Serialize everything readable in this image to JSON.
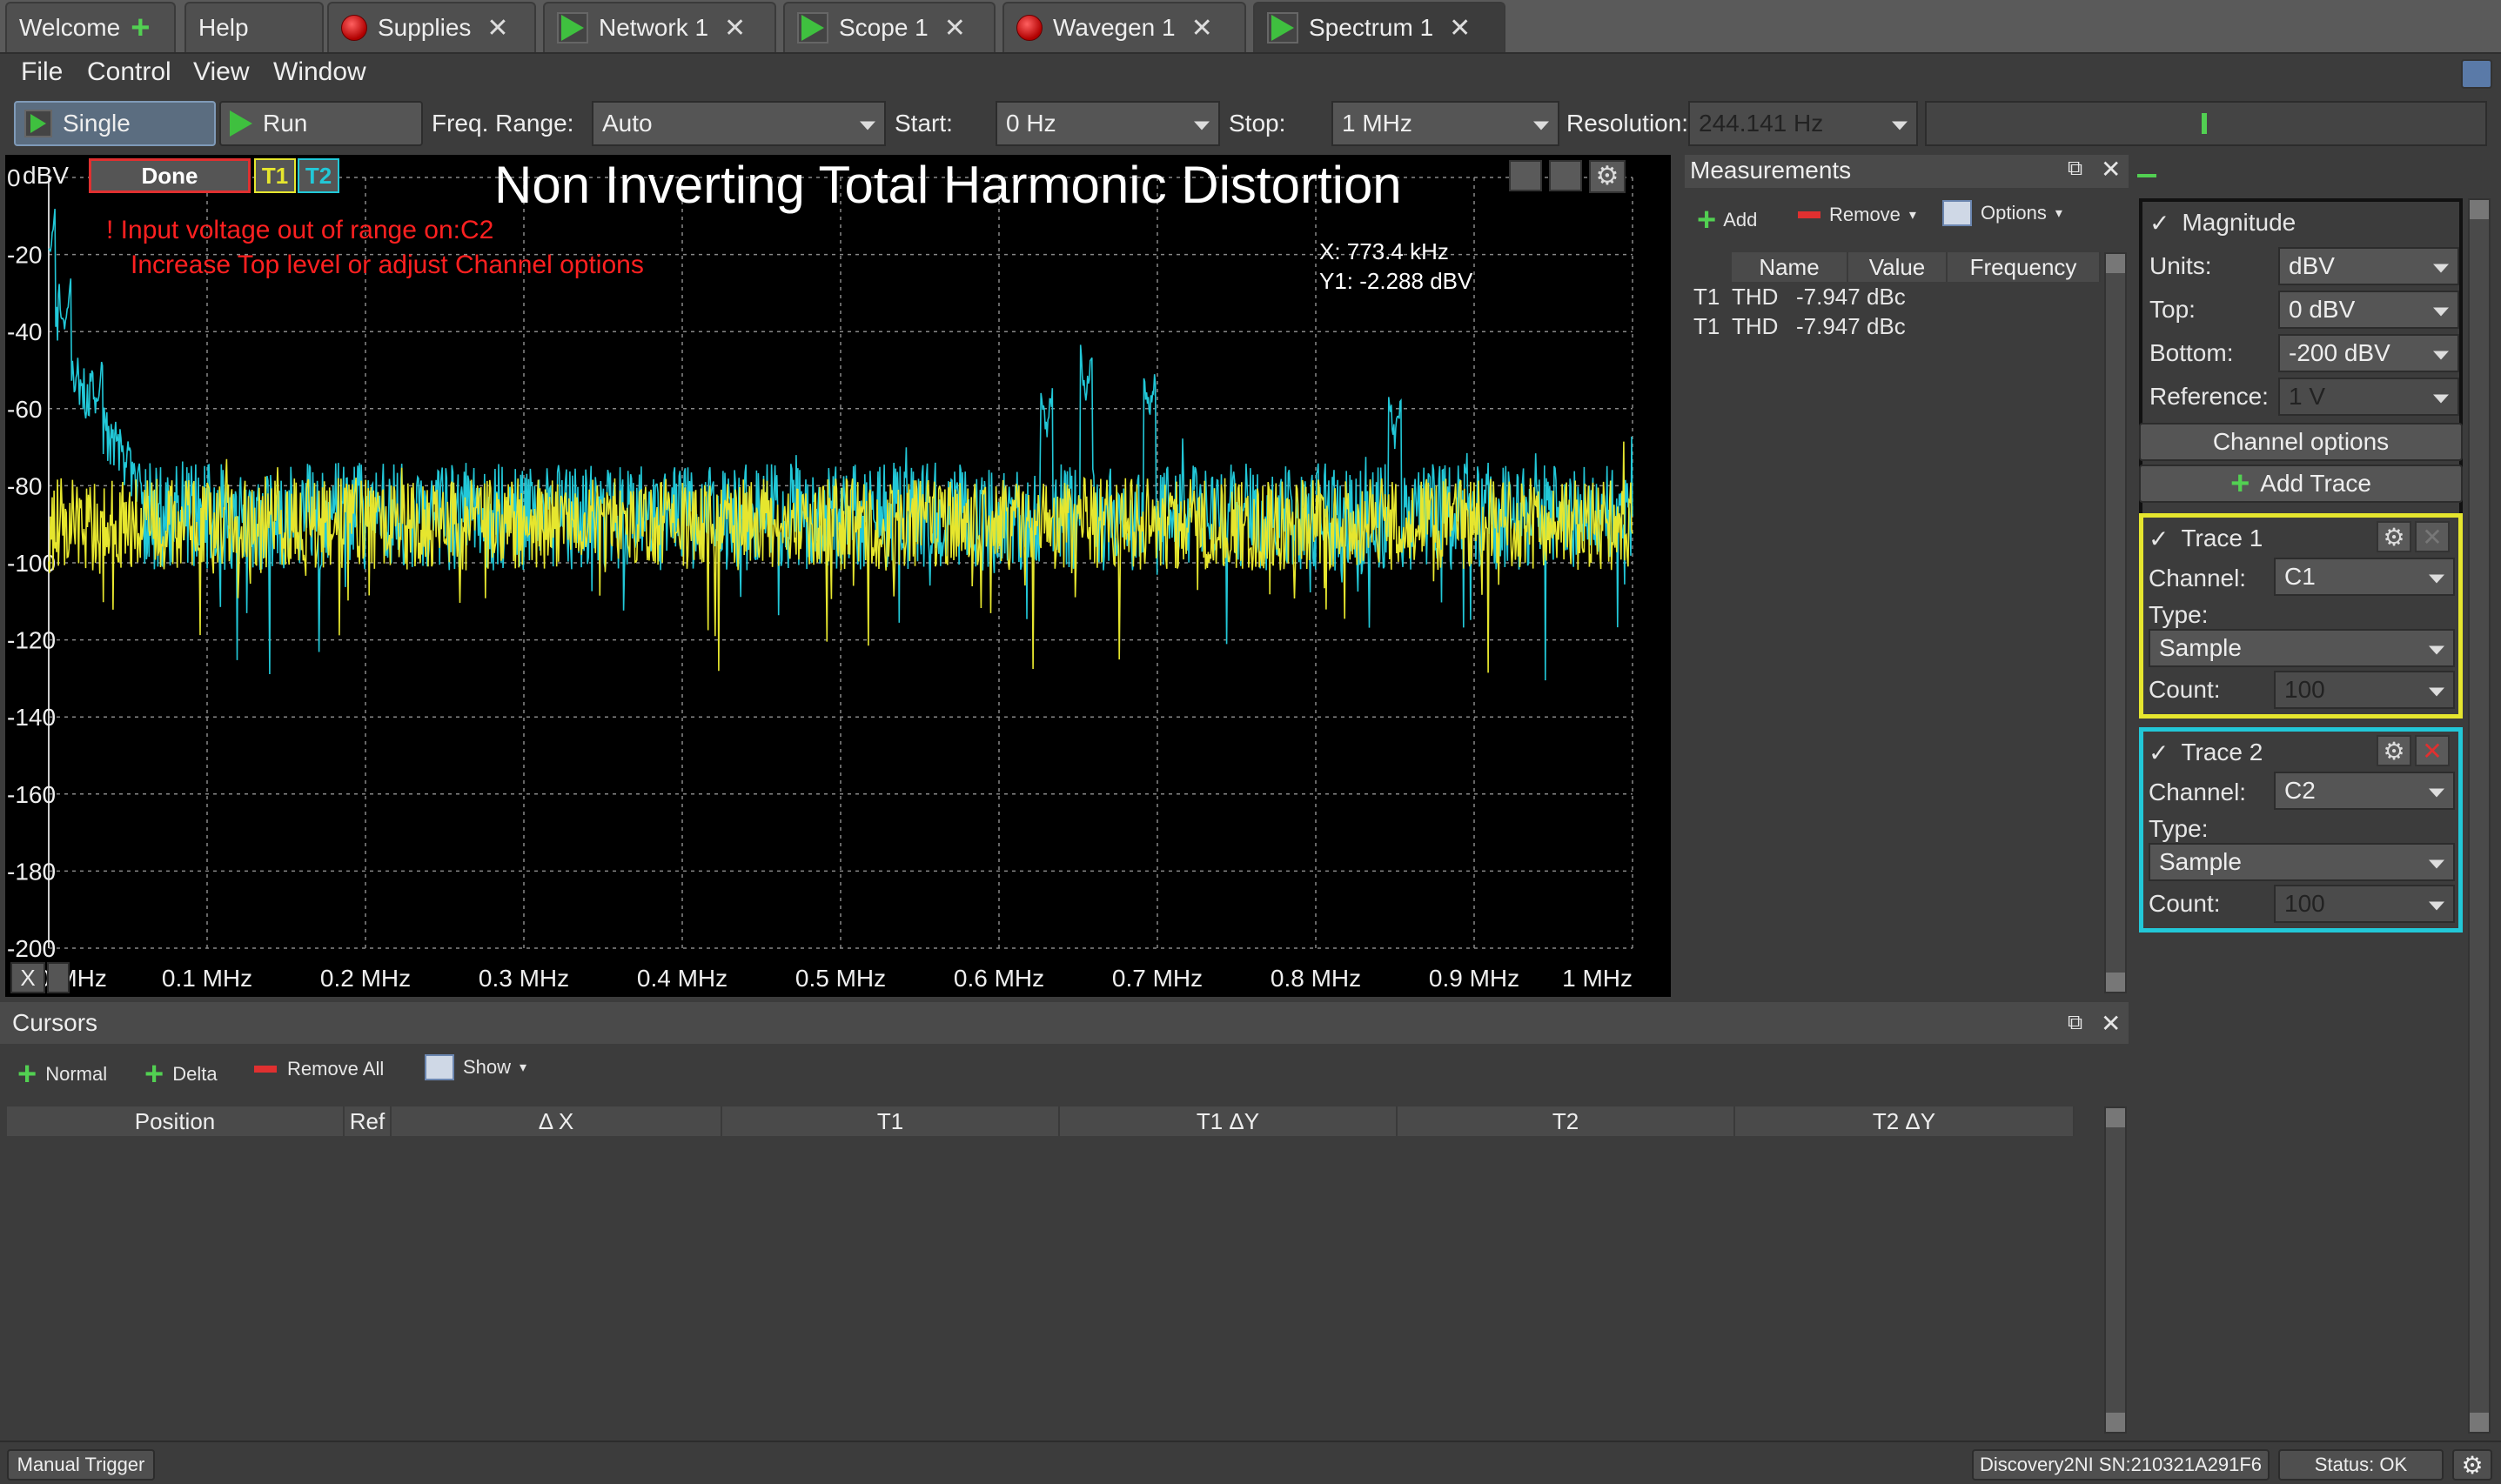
{
  "tabs": [
    {
      "label": "Welcome",
      "icon": "plus-icon"
    },
    {
      "label": "Help",
      "icon": ""
    },
    {
      "label": "Supplies",
      "icon": "stop-red-icon"
    },
    {
      "label": "Network 1",
      "icon": "play-icon"
    },
    {
      "label": "Scope 1",
      "icon": "play-icon"
    },
    {
      "label": "Wavegen 1",
      "icon": "stop-red-icon"
    },
    {
      "label": "Spectrum 1",
      "icon": "play-icon"
    }
  ],
  "menu": [
    "File",
    "Control",
    "View",
    "Window"
  ],
  "toolbar": {
    "single_label": "Single",
    "run_label": "Run",
    "freq_range_label": "Freq. Range:",
    "freq_range_value": "Auto",
    "start_label": "Start:",
    "start_value": "0 Hz",
    "stop_label": "Stop:",
    "stop_value": "1 MHz",
    "resolution_label": "Resolution:",
    "resolution_value": "244.141 Hz"
  },
  "plot": {
    "unit_label": "dBV",
    "status": "Done",
    "t1": "T1",
    "t2": "T2",
    "title": "Non Inverting Total Harmonic Distortion",
    "warning_line1": "! Input voltage out of range on:C2",
    "warning_line2": "Increase Top level or adjust Channel options",
    "cursor_x": "X: 773.4 kHz",
    "cursor_y": "Y1: -2.288 dBV",
    "x_axis_button": "X"
  },
  "chart_data": {
    "type": "line",
    "title": "Non Inverting Total Harmonic Distortion",
    "xlabel": "",
    "ylabel": "dBV",
    "xlim": [
      0,
      1
    ],
    "ylim": [
      -200,
      0
    ],
    "x_unit": "MHz",
    "y_ticks": [
      "0",
      "-20",
      "-40",
      "-60",
      "-80",
      "-100",
      "-120",
      "-140",
      "-160",
      "-180",
      "-200"
    ],
    "x_ticks": [
      "0 MHz",
      "0.1 MHz",
      "0.2 MHz",
      "0.3 MHz",
      "0.4 MHz",
      "0.5 MHz",
      "0.6 MHz",
      "0.7 MHz",
      "0.8 MHz",
      "0.9 MHz",
      "1 MHz"
    ],
    "grid": true,
    "series": [
      {
        "name": "T1",
        "color": "#e6e62e",
        "noise_floor_db": -90,
        "spread_db": 12
      },
      {
        "name": "T2",
        "color": "#22c8d8",
        "noise_floor_db": -88,
        "spread_db": 14,
        "peaks": [
          {
            "x": 0.0,
            "y": -20
          },
          {
            "x": 0.01,
            "y": -40
          },
          {
            "x": 0.03,
            "y": -60
          },
          {
            "x": 0.63,
            "y": -66
          },
          {
            "x": 0.655,
            "y": -57
          },
          {
            "x": 0.695,
            "y": -62
          },
          {
            "x": 0.85,
            "y": -68
          }
        ]
      }
    ]
  },
  "measurements": {
    "title": "Measurements",
    "add": "Add",
    "remove": "Remove",
    "options": "Options",
    "columns": [
      "Name",
      "Value",
      "Frequency"
    ],
    "rows": [
      {
        "trace": "T1",
        "name": "THD",
        "value": "-7.947 dBc",
        "frequency": ""
      },
      {
        "trace": "T1",
        "name": "THD",
        "value": "-7.947 dBc",
        "frequency": ""
      }
    ]
  },
  "cursors": {
    "title": "Cursors",
    "normal": "Normal",
    "delta": "Delta",
    "remove_all": "Remove All",
    "show": "Show",
    "columns": [
      "Position",
      "Ref",
      "Δ X",
      "T1",
      "T1 ΔY",
      "T2",
      "T2 ΔY"
    ]
  },
  "side": {
    "magnitude": "Magnitude",
    "units_label": "Units:",
    "units_value": "dBV",
    "top_label": "Top:",
    "top_value": "0 dBV",
    "bottom_label": "Bottom:",
    "bottom_value": "-200 dBV",
    "reference_label": "Reference:",
    "reference_value": "1 V",
    "channel_options": "Channel options",
    "add_trace": "Add Trace",
    "trace1": {
      "title": "Trace 1",
      "channel_label": "Channel:",
      "channel": "C1",
      "type_label": "Type:",
      "type": "Sample",
      "count_label": "Count:",
      "count": "100"
    },
    "trace2": {
      "title": "Trace 2",
      "channel_label": "Channel:",
      "channel": "C2",
      "type_label": "Type:",
      "type": "Sample",
      "count_label": "Count:",
      "count": "100"
    }
  },
  "statusbar": {
    "manual_trigger": "Manual Trigger",
    "device": "Discovery2NI SN:210321A291F6",
    "status": "Status: OK"
  }
}
